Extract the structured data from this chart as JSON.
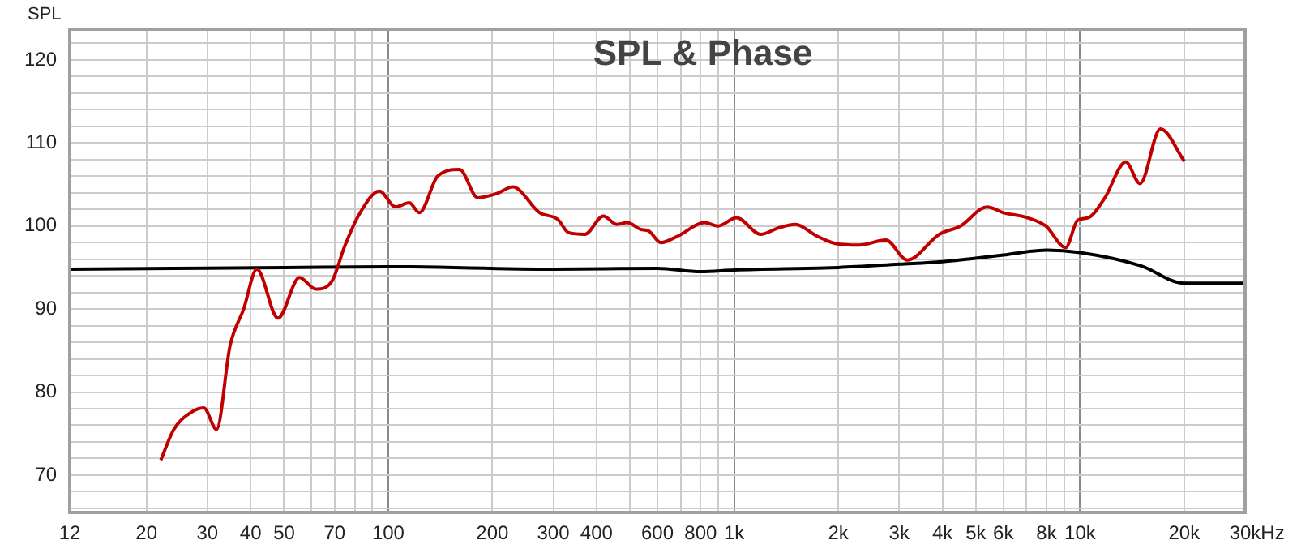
{
  "chart_data": {
    "type": "line",
    "title": "SPL & Phase",
    "ylabel": "SPL",
    "xlabel": "Hz",
    "log": "x",
    "grid": true,
    "legend": false,
    "marker": "none",
    "line_style": "solid",
    "xlim": [
      12,
      30000
    ],
    "ylim": [
      65.5,
      123.7
    ],
    "xticks": [
      12,
      20,
      30,
      40,
      50,
      {
        "value": 60,
        "label": null
      },
      70,
      {
        "value": 80,
        "label": null
      },
      {
        "value": 90,
        "label": null
      },
      100,
      200,
      300,
      400,
      {
        "value": 500,
        "label": null
      },
      600,
      {
        "value": 700,
        "label": null
      },
      800,
      {
        "value": 900,
        "label": null
      },
      {
        "value": 1000,
        "label": "1k"
      },
      {
        "value": 2000,
        "label": "2k"
      },
      {
        "value": 3000,
        "label": "3k"
      },
      {
        "value": 4000,
        "label": "4k"
      },
      {
        "value": 5000,
        "label": "5k"
      },
      {
        "value": 6000,
        "label": "6k"
      },
      {
        "value": 7000,
        "label": null
      },
      {
        "value": 8000,
        "label": "8k"
      },
      {
        "value": 9000,
        "label": null
      },
      {
        "value": 10000,
        "label": "10k"
      },
      {
        "value": 20000,
        "label": "20k"
      },
      {
        "value": 30000,
        "label": "30k"
      }
    ],
    "yticks": [
      {
        "value": 66,
        "label": null
      },
      {
        "value": 68,
        "label": null
      },
      70,
      {
        "value": 72,
        "label": null
      },
      {
        "value": 74,
        "label": null
      },
      {
        "value": 76,
        "label": null
      },
      {
        "value": 78,
        "label": null
      },
      80,
      {
        "value": 82,
        "label": null
      },
      {
        "value": 84,
        "label": null
      },
      {
        "value": 86,
        "label": null
      },
      {
        "value": 88,
        "label": null
      },
      90,
      {
        "value": 92,
        "label": null
      },
      {
        "value": 94,
        "label": null
      },
      {
        "value": 96,
        "label": null
      },
      {
        "value": 98,
        "label": null
      },
      100,
      {
        "value": 102,
        "label": null
      },
      {
        "value": 104,
        "label": null
      },
      {
        "value": 106,
        "label": null
      },
      {
        "value": 108,
        "label": null
      },
      110,
      {
        "value": 112,
        "label": null
      },
      {
        "value": 114,
        "label": null
      },
      {
        "value": 116,
        "label": null
      },
      {
        "value": 118,
        "label": null
      },
      120,
      {
        "value": 122,
        "label": null
      }
    ],
    "series": [
      {
        "color": "#c00000",
        "x": [
          22,
          24,
          26.8,
          29.3,
          31.9,
          34.9,
          38.2,
          41.7,
          48,
          55.4,
          61.7,
          68.6,
          74.9,
          81.9,
          94.3,
          105,
          115,
          123,
          139,
          160.7,
          181.6,
          206,
          229,
          274,
          309,
          332,
          370,
          419,
          457,
          491,
          536,
          566,
          614,
          688,
          821,
          898,
          1016,
          1192,
          1350,
          1504,
          1731,
          1960,
          2298,
          2744,
          3165,
          3918,
          4512,
          5388,
          6000,
          6903,
          7958,
          9082,
          9845,
          10573,
          11760,
          13560,
          14900,
          17070,
          20015
        ],
        "values": [
          71.8,
          75.5,
          77.5,
          78.1,
          75.5,
          85.6,
          90,
          94.8,
          88.9,
          93.8,
          92.4,
          93.3,
          97.6,
          101.2,
          104.2,
          102.3,
          102.8,
          101.6,
          106.0,
          106.8,
          103.4,
          103.9,
          104.7,
          101.6,
          100.8,
          99.2,
          99.0,
          101.2,
          100.2,
          100.4,
          99.6,
          99.4,
          98.0,
          98.8,
          100.4,
          100.0,
          101.0,
          99.0,
          99.8,
          100.2,
          98.8,
          97.9,
          97.7,
          98.3,
          95.9,
          99.0,
          100.0,
          102.3,
          101.6,
          101.1,
          100.0,
          97.4,
          100.7,
          101.0,
          103.3,
          107.7,
          105.1,
          111.7,
          107.8
        ]
      },
      {
        "color": "#000000",
        "x": [
          12,
          50,
          100,
          300,
          600,
          800,
          1000,
          2000,
          3000,
          4000,
          6000,
          8000,
          10000,
          15000,
          20000,
          30000
        ],
        "values": [
          94.8,
          95.0,
          95.1,
          94.8,
          94.9,
          94.5,
          94.7,
          95.0,
          95.4,
          95.7,
          96.5,
          97.1,
          96.8,
          95.2,
          93.1,
          93.1
        ]
      }
    ]
  }
}
